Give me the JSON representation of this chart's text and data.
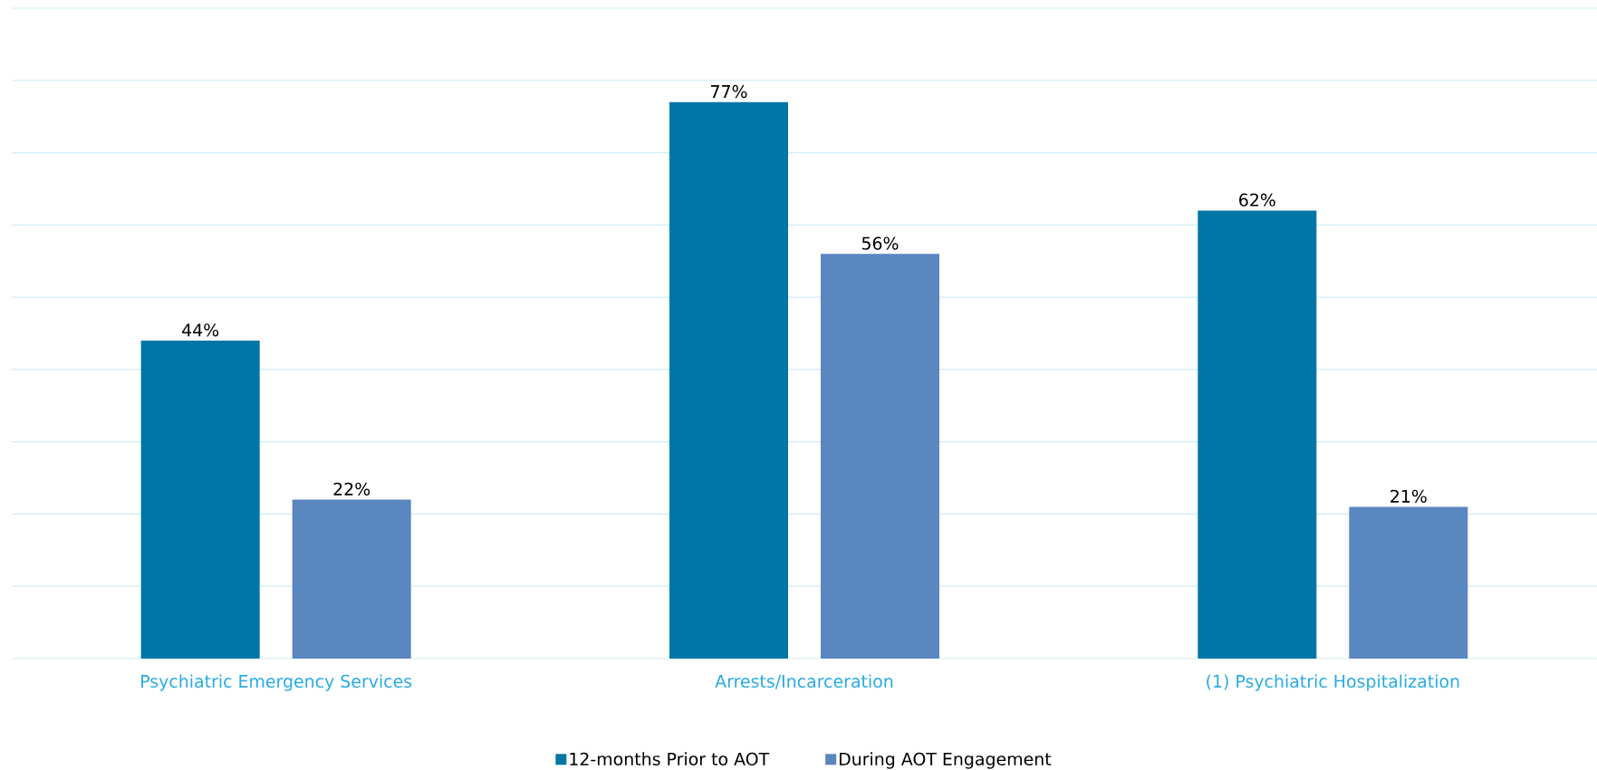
{
  "chart_data": {
    "type": "bar",
    "categories": [
      "Psychiatric Emergency Services",
      "Arrests/Incarceration",
      "(1) Psychiatric Hospitalization"
    ],
    "series": [
      {
        "name": "12-months Prior to AOT",
        "color": "#0076a6",
        "values": [
          44,
          77,
          62
        ],
        "value_labels": [
          "44%",
          "77%",
          "62%"
        ]
      },
      {
        "name": "During AOT Engagement",
        "color": "#5b87c1",
        "values": [
          22,
          56,
          21
        ],
        "value_labels": [
          "22%",
          "56%",
          "21%"
        ]
      }
    ],
    "ylim": [
      0,
      90
    ],
    "yticks": [
      {
        "value": 0,
        "label": null
      },
      {
        "value": 10,
        "label": null
      },
      {
        "value": 20,
        "label": null
      },
      {
        "value": 30,
        "label": null
      },
      {
        "value": 40,
        "label": null
      },
      {
        "value": 50,
        "label": null
      },
      {
        "value": 60,
        "label": null
      },
      {
        "value": 70,
        "label": null
      },
      {
        "value": 80,
        "label": null
      },
      {
        "value": 90,
        "label": null
      }
    ],
    "tick_labels": "x",
    "grid": "y",
    "legend": "bottom"
  }
}
